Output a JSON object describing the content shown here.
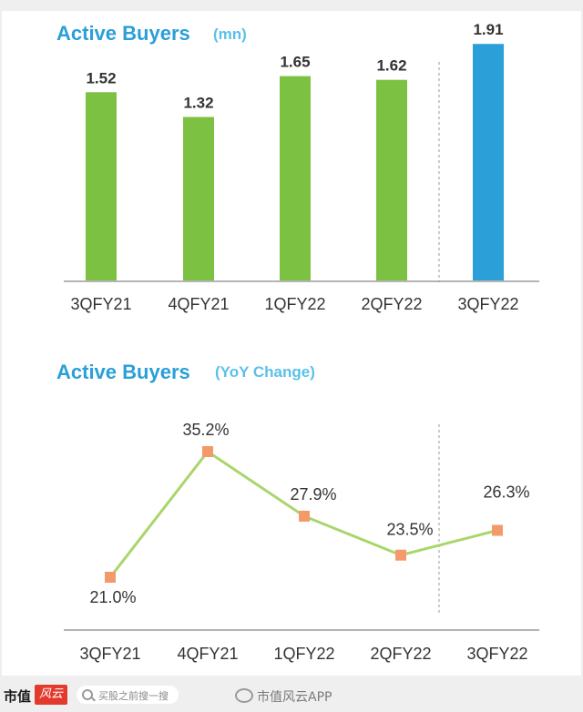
{
  "chart_data": [
    {
      "type": "bar",
      "title": "Active Buyers",
      "subtitle": "(mn)",
      "categories": [
        "3QFY21",
        "4QFY21",
        "1QFY22",
        "2QFY22",
        "3QFY22"
      ],
      "values": [
        1.52,
        1.32,
        1.65,
        1.62,
        1.91
      ],
      "value_labels": [
        "1.52",
        "1.32",
        "1.65",
        "1.62",
        "1.91"
      ],
      "highlight_index": 4,
      "ylim": [
        0,
        2.0
      ],
      "grid": false,
      "colors": {
        "bar": "#7dc142",
        "highlight": "#2a9fd8",
        "title": "#2a9fd8",
        "subtitle": "#5bc0e8"
      }
    },
    {
      "type": "line",
      "title": "Active Buyers",
      "subtitle": "(YoY Change)",
      "categories": [
        "3QFY21",
        "4QFY21",
        "1QFY22",
        "2QFY22",
        "3QFY22"
      ],
      "values": [
        21.0,
        35.2,
        27.9,
        23.5,
        26.3
      ],
      "value_labels": [
        "21.0%",
        "35.2%",
        "27.9%",
        "23.5%",
        "26.3%"
      ],
      "ylim": [
        15,
        40
      ],
      "grid": false,
      "colors": {
        "line": "#a9d66a",
        "marker": "#f39a6a",
        "title": "#2a9fd8",
        "subtitle": "#5bc0e8"
      }
    }
  ],
  "footer": {
    "brand": "市值",
    "brand_mark": "风云",
    "search_placeholder": "买股之前搜一搜",
    "weibo_text": "市值风云APP"
  }
}
